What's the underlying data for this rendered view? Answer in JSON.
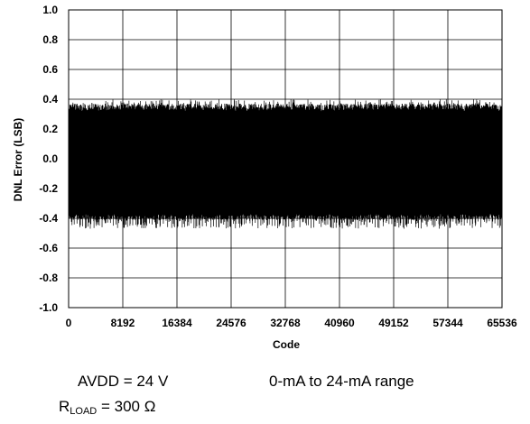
{
  "chart_data": {
    "type": "line",
    "title": "",
    "xlabel": "Code",
    "ylabel": "DNL Error (LSB)",
    "xlim": [
      0,
      65536
    ],
    "ylim": [
      -1.0,
      1.0
    ],
    "x_ticks": [
      0,
      8192,
      16384,
      24576,
      32768,
      40960,
      49152,
      57344,
      65536
    ],
    "x_tick_labels": [
      "0",
      "8192",
      "16384",
      "24576",
      "32768",
      "40960",
      "49152",
      "57344",
      "65536"
    ],
    "y_ticks": [
      1.0,
      0.8,
      0.6,
      0.4,
      0.2,
      0.0,
      -0.2,
      -0.4,
      -0.6,
      -0.8,
      -1.0
    ],
    "y_tick_labels": [
      "1.0",
      "0.8",
      "0.6",
      "0.4",
      "0.2",
      "0.0",
      "-0.2",
      "-0.4",
      "-0.6",
      "-0.8",
      "-1.0"
    ],
    "grid": true,
    "series": [
      {
        "color": "#000000",
        "description_values": {
          "typical_max": 0.37,
          "typical_min": -0.41,
          "peak_max": 0.4,
          "peak_min": -0.47
        }
      }
    ]
  },
  "conditions": {
    "avdd": "AVDD = 24 V",
    "range": "0-mA to 24-mA range",
    "rload_prefix": "R",
    "rload_sub": "LOAD",
    "rload_suffix": " = 300 Ω"
  }
}
